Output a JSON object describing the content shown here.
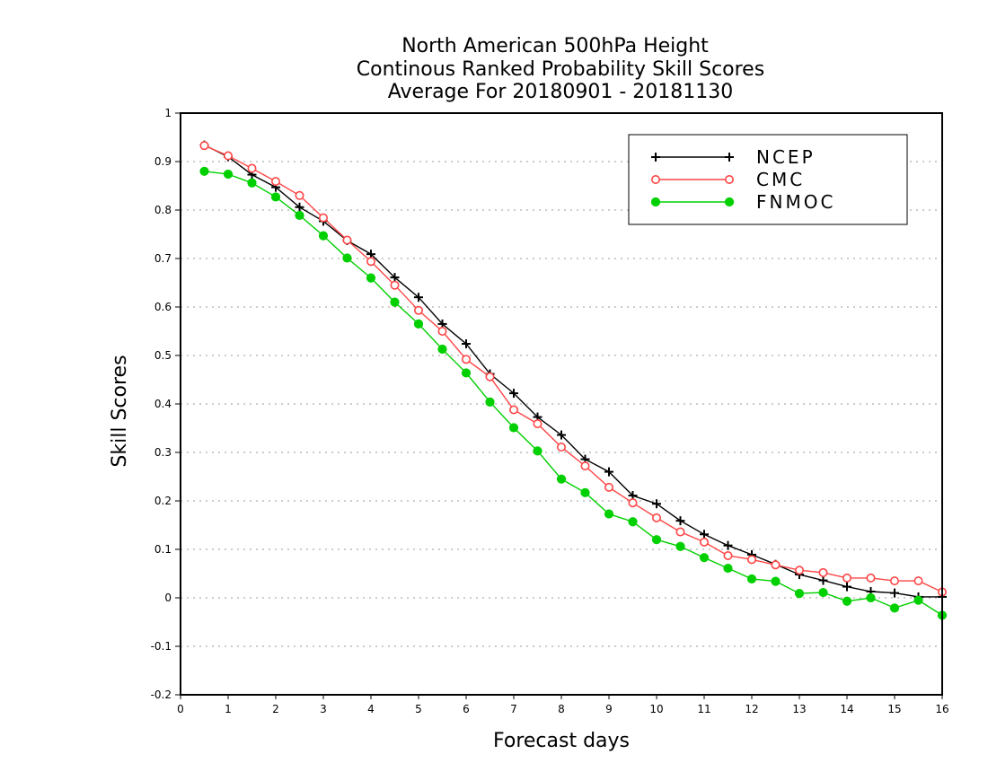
{
  "chart_data": {
    "type": "line",
    "title_lines": [
      "North American 500hPa Height",
      "Continous Ranked Probability Skill Scores",
      "Average For 20180901 - 20181130"
    ],
    "xlabel": "Forecast days",
    "ylabel": "Skill Scores",
    "xlim": [
      0,
      16
    ],
    "ylim": [
      -0.2,
      1
    ],
    "x_ticks": [
      "0",
      "1",
      "2",
      "3",
      "4",
      "5",
      "6",
      "7",
      "8",
      "9",
      "10",
      "11",
      "12",
      "13",
      "14",
      "15",
      "16"
    ],
    "y_ticks": [
      "1",
      "0.9",
      "0.8",
      "0.7",
      "0.6",
      "0.5",
      "0.4",
      "0.3",
      "0.2",
      "0.1",
      "0",
      "-0.1",
      "-0.2"
    ],
    "grid": "horizontal dotted",
    "legend_position": "top-right",
    "x": [
      0.5,
      1,
      1.5,
      2,
      2.5,
      3,
      3.5,
      4,
      4.5,
      5,
      5.5,
      6,
      6.5,
      7,
      7.5,
      8,
      8.5,
      9,
      9.5,
      10,
      10.5,
      11,
      11.5,
      12,
      12.5,
      13,
      13.5,
      14,
      14.5,
      15,
      15.5,
      16
    ],
    "series": [
      {
        "name": "NCEP",
        "color": "#000000",
        "marker": "plus",
        "values": [
          0.934,
          0.91,
          0.873,
          0.847,
          0.806,
          0.777,
          0.737,
          0.709,
          0.661,
          0.62,
          0.565,
          0.524,
          0.462,
          0.422,
          0.373,
          0.336,
          0.286,
          0.26,
          0.211,
          0.194,
          0.159,
          0.131,
          0.108,
          0.089,
          0.069,
          0.048,
          0.036,
          0.023,
          0.013,
          0.01,
          0.002,
          0.002
        ]
      },
      {
        "name": "CMC",
        "color": "#ff4545",
        "marker": "open-circle",
        "values": [
          0.933,
          0.912,
          0.886,
          0.859,
          0.83,
          0.784,
          0.738,
          0.694,
          0.645,
          0.593,
          0.55,
          0.492,
          0.456,
          0.388,
          0.359,
          0.311,
          0.272,
          0.228,
          0.196,
          0.165,
          0.136,
          0.115,
          0.087,
          0.079,
          0.068,
          0.057,
          0.052,
          0.041,
          0.041,
          0.035,
          0.035,
          0.012
        ]
      },
      {
        "name": "FNMOC",
        "color": "#00d000",
        "marker": "filled-circle",
        "values": [
          0.88,
          0.874,
          0.856,
          0.827,
          0.789,
          0.747,
          0.701,
          0.66,
          0.61,
          0.565,
          0.513,
          0.464,
          0.404,
          0.351,
          0.303,
          0.245,
          0.217,
          0.173,
          0.157,
          0.12,
          0.106,
          0.083,
          0.061,
          0.039,
          0.034,
          0.009,
          0.011,
          -0.007,
          0.0,
          -0.021,
          -0.005,
          -0.036
        ]
      }
    ]
  }
}
